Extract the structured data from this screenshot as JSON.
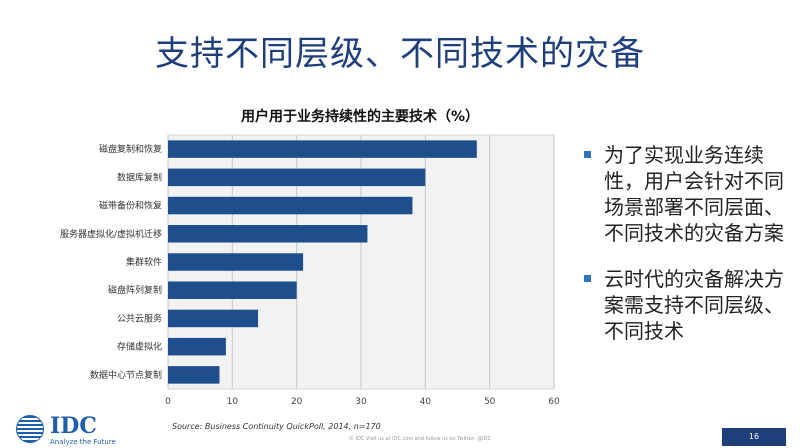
{
  "slide": {
    "title": "支持不同层级、不同技术的灾备",
    "source": "Source: Business Continuity QuickPoll, 2014, n=170",
    "footer": "© IDC  Visit us at IDC.com and follow us on Twitter: @IDC",
    "page_number": "16",
    "logo": {
      "brand": "IDC",
      "tagline": "Analyze the Future"
    }
  },
  "bullets": [
    "为了实现业务连续性，用户会针对不同场景部署不同层面、不同技术的灾备方案",
    "云时代的灾备解决方案需支持不同层级、不同技术"
  ],
  "chart_data": {
    "type": "bar",
    "orientation": "horizontal",
    "title": "用户用于业务持续性的主要技术（%）",
    "categories": [
      "磁盘复制和恢复",
      "数据库复制",
      "磁带备份和恢复",
      "服务器虚拟化/虚拟机迁移",
      "集群软件",
      "磁盘阵列复制",
      "公共云服务",
      "存储虚拟化",
      "数据中心节点复制"
    ],
    "values": [
      48,
      40,
      38,
      31,
      21,
      20,
      14,
      9,
      8
    ],
    "xlim": [
      0,
      60
    ],
    "xticks": [
      0,
      10,
      20,
      30,
      40,
      50,
      60
    ],
    "grid": true,
    "bar_color": "#1f4e8c"
  }
}
